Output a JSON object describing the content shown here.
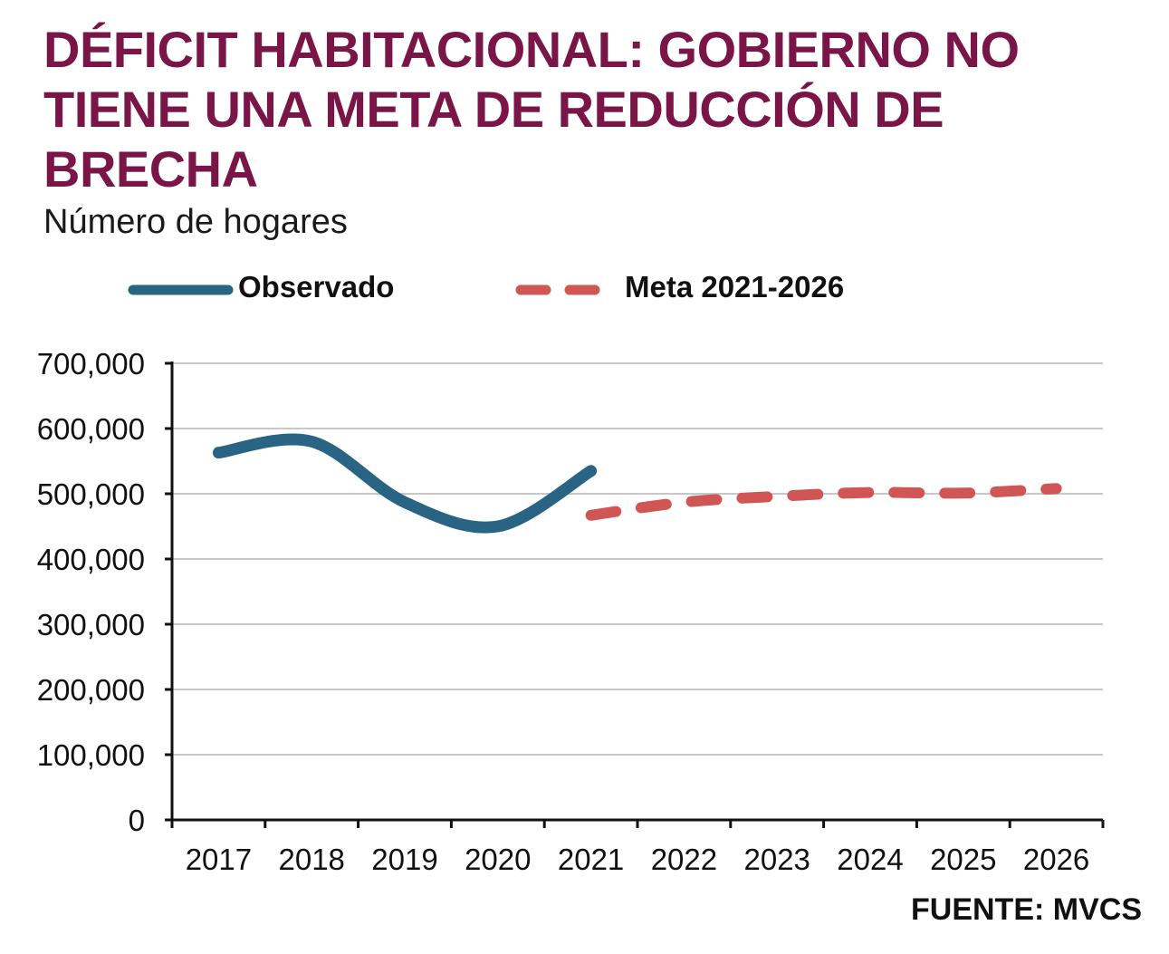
{
  "title": "DÉFICIT HABITACIONAL:  GOBIERNO NO TIENE UNA META DE REDUCCIÓN DE BRECHA",
  "subtitle": "Número de hogares",
  "source": "FUENTE: MVCS",
  "colors": {
    "title": "#7a1548",
    "observed": "#2a6485",
    "target": "#d05555",
    "grid": "#c8c8c8"
  },
  "chart_data": {
    "type": "line",
    "x": [
      "2017",
      "2018",
      "2019",
      "2020",
      "2021",
      "2022",
      "2023",
      "2024",
      "2025",
      "2026"
    ],
    "ylim": [
      0,
      700000
    ],
    "yticks": [
      0,
      100000,
      200000,
      300000,
      400000,
      500000,
      600000,
      700000
    ],
    "ytick_labels": [
      "0",
      "100,000",
      "200,000",
      "300,000",
      "400,000",
      "500,000",
      "600,000",
      "700,000"
    ],
    "grid": true,
    "legend_position": "top",
    "series": [
      {
        "name": "Observado",
        "style": "solid",
        "x": [
          "2017",
          "2018",
          "2019",
          "2020",
          "2021"
        ],
        "values": [
          563000,
          580000,
          487000,
          450000,
          535000
        ]
      },
      {
        "name": "Meta 2021-2026",
        "style": "dashed",
        "x": [
          "2021",
          "2022",
          "2023",
          "2024",
          "2025",
          "2026"
        ],
        "values": [
          467000,
          487000,
          496000,
          502000,
          501000,
          508000
        ]
      }
    ]
  }
}
